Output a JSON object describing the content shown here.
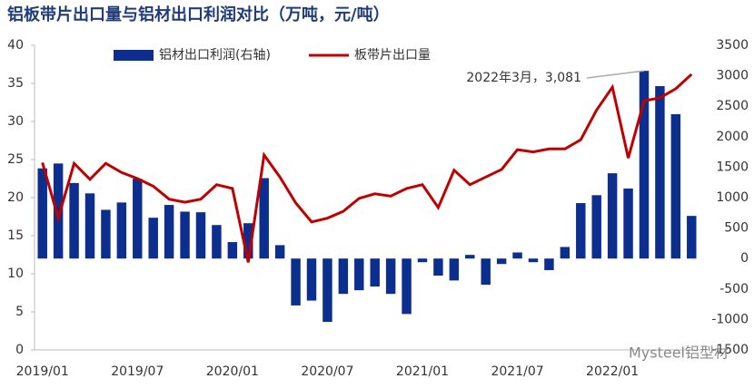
{
  "chart_data": {
    "type": "bar-line",
    "title": "铝板带片出口量与铝材出口利润对比（万吨，元/吨）",
    "categories": [
      "2019/01",
      null,
      null,
      null,
      null,
      null,
      "2019/07",
      null,
      null,
      null,
      null,
      null,
      "2020/01",
      null,
      null,
      null,
      null,
      null,
      "2020/07",
      null,
      null,
      null,
      null,
      null,
      "2021/01",
      null,
      null,
      null,
      null,
      null,
      "2021/07",
      null,
      null,
      null,
      null,
      null,
      "2022/01",
      null,
      null,
      null,
      null,
      null
    ],
    "series": [
      {
        "name": "铝材出口利润(右轴)",
        "type": "bar",
        "axis": "y2",
        "color": "#0b2e8f",
        "values": [
          1480,
          1560,
          1240,
          1070,
          800,
          920,
          1310,
          670,
          880,
          770,
          760,
          550,
          270,
          580,
          1320,
          220,
          -770,
          -690,
          -1040,
          -580,
          -520,
          -460,
          -580,
          -910,
          -60,
          -280,
          -360,
          60,
          -430,
          -90,
          100,
          -60,
          -190,
          190,
          910,
          1040,
          1400,
          1150,
          3081,
          2830,
          2370,
          700
        ]
      },
      {
        "name": "板带片出口量",
        "type": "line",
        "axis": "y",
        "color": "#c00000",
        "values": [
          24.6,
          17.3,
          24.5,
          22.4,
          24.5,
          23.3,
          22.5,
          21.5,
          19.8,
          19.4,
          19.8,
          21.7,
          21.2,
          11.5,
          25.6,
          22.7,
          19.3,
          16.8,
          17.3,
          18.2,
          19.9,
          20.5,
          20.2,
          21.2,
          21.7,
          18.7,
          23.6,
          21.7,
          22.7,
          23.7,
          26.3,
          26.0,
          26.4,
          26.4,
          27.6,
          31.5,
          34.5,
          25.2,
          32.7,
          33.1,
          34.3,
          36.2
        ]
      }
    ],
    "ylim": [
      0,
      40
    ],
    "yticks": [
      0,
      5,
      10,
      15,
      20,
      25,
      30,
      35,
      40
    ],
    "y2lim": [
      -1500,
      3500
    ],
    "y2ticks": [
      -1500,
      -1000,
      -500,
      0,
      500,
      1000,
      1500,
      2000,
      2500,
      3000,
      3500
    ],
    "annotations": [
      "2022年3月，3,081"
    ],
    "watermark": "Mysteel铝型材",
    "grid": false
  }
}
